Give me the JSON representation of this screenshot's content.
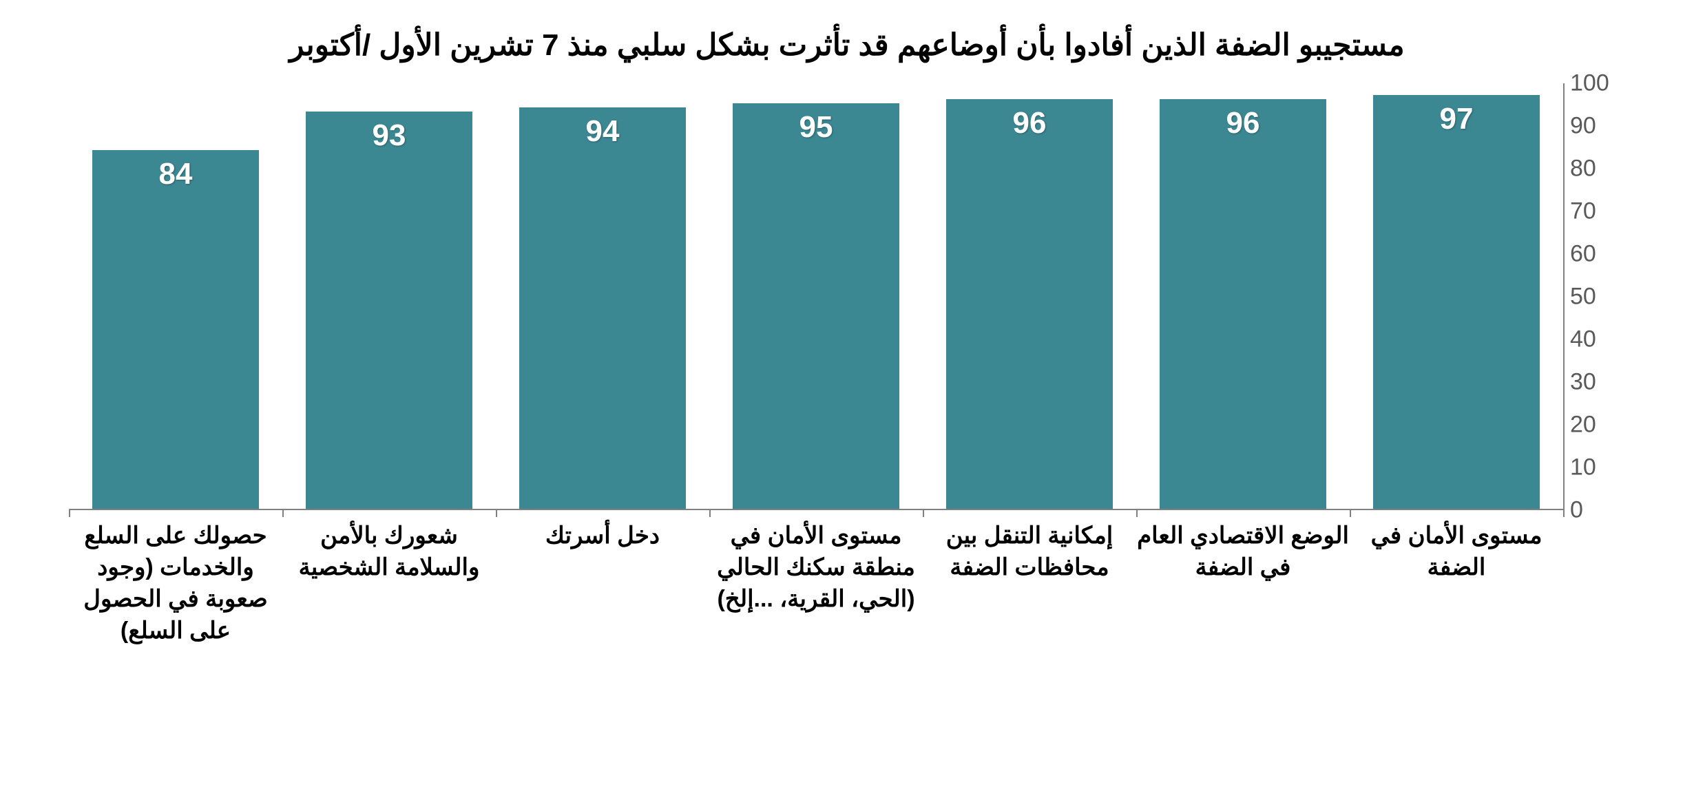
{
  "chart": {
    "type": "bar",
    "title": "مستجيبو الضفة الذين أفادوا بأن أوضاعهم قد تأثرت بشكل سلبي منذ 7 تشرين الأول /أكتوبر",
    "title_fontsize": 44,
    "title_color": "#000000",
    "background_color": "#ffffff",
    "bar_color": "#3b8792",
    "value_label_color": "#ffffff",
    "value_label_fontsize": 44,
    "axis_color": "#808080",
    "tick_label_color": "#595959",
    "tick_label_fontsize": 34,
    "x_label_fontsize": 34,
    "x_label_color": "#000000",
    "ylim": [
      0,
      100
    ],
    "ytick_step": 10,
    "yticks": [
      0,
      10,
      20,
      30,
      40,
      50,
      60,
      70,
      80,
      90,
      100
    ],
    "bar_width_ratio": 0.78,
    "categories": [
      "حصولك على السلع والخدمات (وجود صعوبة في الحصول على السلع)",
      "شعورك بالأمن والسلامة الشخصية",
      "دخل أسرتك",
      "مستوى الأمان في منطقة سكنك الحالي (الحي، القرية، ...إلخ)",
      "إمكانية التنقل بين محافظات الضفة",
      "الوضع الاقتصادي العام في الضفة",
      "مستوى الأمان في الضفة"
    ],
    "values": [
      84,
      93,
      94,
      95,
      96,
      96,
      97
    ]
  }
}
